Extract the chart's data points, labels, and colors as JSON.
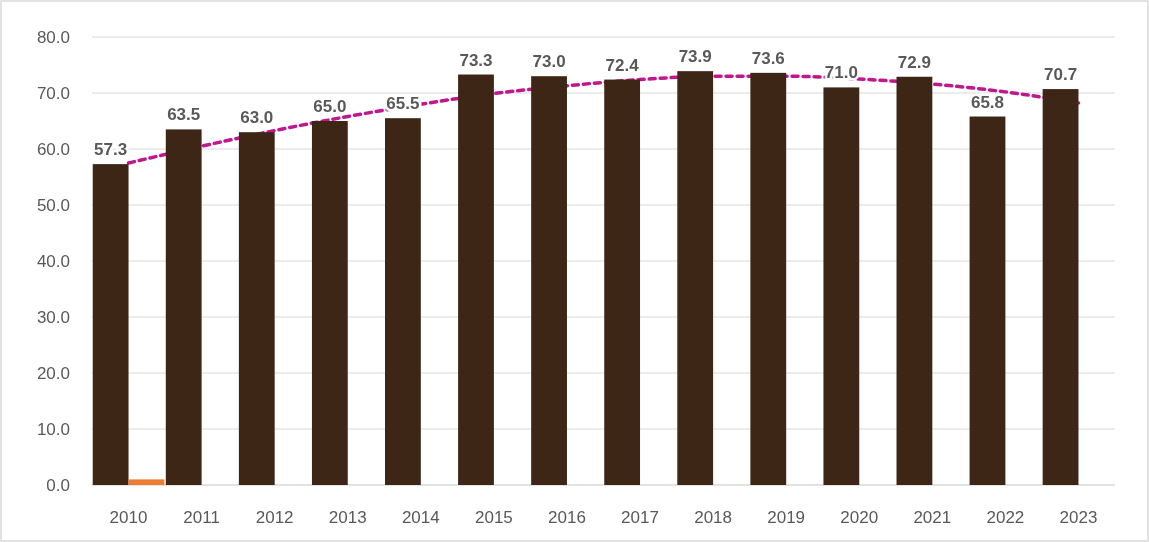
{
  "chart_data": {
    "type": "bar",
    "categories": [
      "2010",
      "2011",
      "2012",
      "2013",
      "2014",
      "2015",
      "2016",
      "2017",
      "2018",
      "2019",
      "2020",
      "2021",
      "2022",
      "2023"
    ],
    "series": [
      {
        "color": "#3d2616",
        "values": [
          57.3,
          63.5,
          63.0,
          65.0,
          65.5,
          73.3,
          73.0,
          72.4,
          73.9,
          73.6,
          71.0,
          72.9,
          65.8,
          70.7
        ],
        "value_labels": [
          "57.3",
          "63.5",
          "63.0",
          "65.0",
          "65.5",
          "73.3",
          "73.0",
          "72.4",
          "73.9",
          "73.6",
          "71.0",
          "72.9",
          "65.8",
          "70.7"
        ]
      },
      {
        "color": "#ed7d31",
        "values": [
          1.0,
          null,
          null,
          null,
          null,
          null,
          null,
          null,
          null,
          null,
          null,
          null,
          null,
          null
        ]
      },
      {
        "type": "line",
        "color": "#c0168f",
        "line_style": "dashed",
        "values": [
          57.5,
          60.5,
          63.3,
          65.8,
          68.0,
          69.9,
          71.3,
          72.4,
          73.0,
          73.0,
          72.5,
          71.6,
          70.2,
          68.2
        ]
      }
    ],
    "ylim": [
      0,
      80
    ],
    "yticks": [
      {
        "value": 0,
        "label": "0.0"
      },
      {
        "value": 10,
        "label": "10.0"
      },
      {
        "value": 20,
        "label": "20.0"
      },
      {
        "value": 30,
        "label": "30.0"
      },
      {
        "value": 40,
        "label": "40.0"
      },
      {
        "value": 50,
        "label": "50.0"
      },
      {
        "value": 60,
        "label": "60.0"
      },
      {
        "value": 70,
        "label": "70.0"
      },
      {
        "value": 80,
        "label": "80.0"
      }
    ],
    "grid": "y"
  }
}
